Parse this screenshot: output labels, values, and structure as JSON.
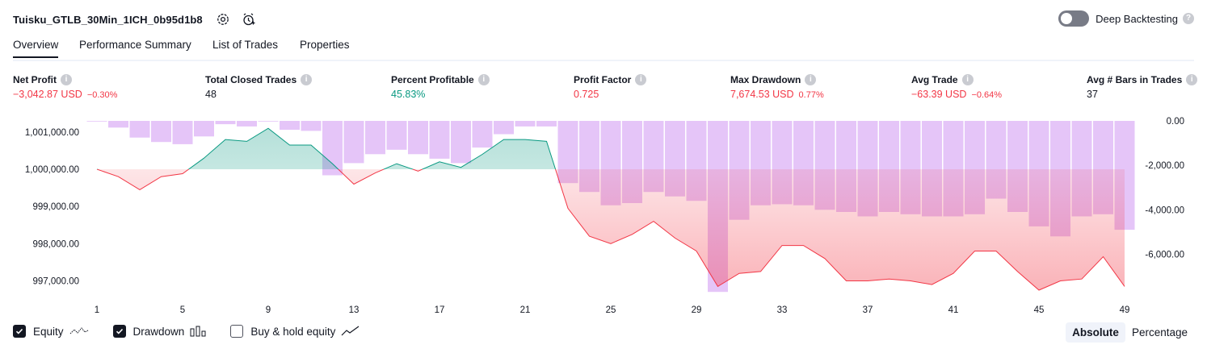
{
  "header": {
    "strategy_name": "Tuisku_GTLB_30Min_1ICH_0b95d1b8",
    "settings_icon": "gear-icon",
    "alert_icon": "alarm-clock-plus-icon",
    "deep_backtesting_label": "Deep Backtesting",
    "deep_backtesting_enabled": false
  },
  "tabs": [
    {
      "label": "Overview",
      "active": true
    },
    {
      "label": "Performance Summary",
      "active": false
    },
    {
      "label": "List of Trades",
      "active": false
    },
    {
      "label": "Properties",
      "active": false
    }
  ],
  "metrics": {
    "net_profit": {
      "label": "Net Profit",
      "value": "−3,042.87 USD",
      "sub": "−0.30%"
    },
    "total_closed_trades": {
      "label": "Total Closed Trades",
      "value": "48"
    },
    "percent_profitable": {
      "label": "Percent Profitable",
      "value": "45.83%"
    },
    "profit_factor": {
      "label": "Profit Factor",
      "value": "0.725"
    },
    "max_drawdown": {
      "label": "Max Drawdown",
      "value": "7,674.53 USD",
      "sub": "0.77%"
    },
    "avg_trade": {
      "label": "Avg Trade",
      "value": "−63.39 USD",
      "sub": "−0.64%"
    },
    "avg_bars": {
      "label": "Avg # Bars in Trades",
      "value": "37"
    }
  },
  "chart_data": {
    "type": "line",
    "x_ticks": [
      "1",
      "5",
      "9",
      "13",
      "17",
      "21",
      "25",
      "29",
      "33",
      "37",
      "41",
      "45",
      "49"
    ],
    "left_ticks": [
      "1,001,000.00",
      "1,000,000.00",
      "999,000.00",
      "998,000.00",
      "997,000.00"
    ],
    "right_ticks": [
      "0.00",
      "-2,000.00",
      "-4,000.00",
      "-6,000.00"
    ],
    "equity_baseline": 1000000,
    "equity_range": [
      996750,
      1001300
    ],
    "drawdown_range": [
      -7800,
      0
    ],
    "colors": {
      "profit": "#089981",
      "loss": "#f23645",
      "drawdown": "#c57ef0"
    },
    "series": [
      {
        "name": "Equity",
        "x": [
          1,
          2,
          3,
          4,
          5,
          6,
          7,
          8,
          9,
          10,
          11,
          12,
          13,
          14,
          15,
          16,
          17,
          18,
          19,
          20,
          21,
          22,
          23,
          24,
          25,
          26,
          27,
          28,
          29,
          30,
          31,
          32,
          33,
          34,
          35,
          36,
          37,
          38,
          39,
          40,
          41,
          42,
          43,
          44,
          45,
          46,
          47,
          48,
          49
        ],
        "values": [
          1000000,
          999800,
          999450,
          999800,
          999880,
          1000300,
          1000800,
          1000750,
          1001100,
          1000650,
          1000650,
          1000150,
          999600,
          999900,
          1000150,
          999950,
          1000200,
          1000050,
          1000400,
          1000800,
          1000800,
          1000750,
          998950,
          998200,
          998000,
          998250,
          998600,
          998150,
          997800,
          996850,
          997200,
          997250,
          997950,
          997950,
          997600,
          997000,
          997000,
          997050,
          997000,
          996900,
          997200,
          997800,
          997800,
          997250,
          996750,
          997000,
          997050,
          997650,
          996850
        ]
      },
      {
        "name": "Drawdown",
        "x": [
          1,
          2,
          3,
          4,
          5,
          6,
          7,
          8,
          9,
          10,
          11,
          12,
          13,
          14,
          15,
          16,
          17,
          18,
          19,
          20,
          21,
          22,
          23,
          24,
          25,
          26,
          27,
          28,
          29,
          30,
          31,
          32,
          33,
          34,
          35,
          36,
          37,
          38,
          39,
          40,
          41,
          42,
          43,
          44,
          45,
          46,
          47,
          48,
          49
        ],
        "values": [
          0,
          -300,
          -750,
          -950,
          -1050,
          -700,
          -150,
          -250,
          0,
          -400,
          -450,
          -2450,
          -1900,
          -1500,
          -1300,
          -1500,
          -1700,
          -1900,
          -1200,
          -600,
          -250,
          -250,
          -2800,
          -3200,
          -3800,
          -3700,
          -3200,
          -3400,
          -3600,
          -7700,
          -4450,
          -3800,
          -3750,
          -3800,
          -4000,
          -4100,
          -4300,
          -4100,
          -4200,
          -4300,
          -4300,
          -4200,
          -3500,
          -4100,
          -4750,
          -5200,
          -4300,
          -4200,
          -4900
        ]
      }
    ]
  },
  "legend": {
    "equity": {
      "label": "Equity",
      "checked": true
    },
    "drawdown": {
      "label": "Drawdown",
      "checked": true
    },
    "buy_hold": {
      "label": "Buy & hold equity",
      "checked": false
    }
  },
  "scale_switch": {
    "absolute": "Absolute",
    "percentage": "Percentage",
    "active": "absolute"
  }
}
